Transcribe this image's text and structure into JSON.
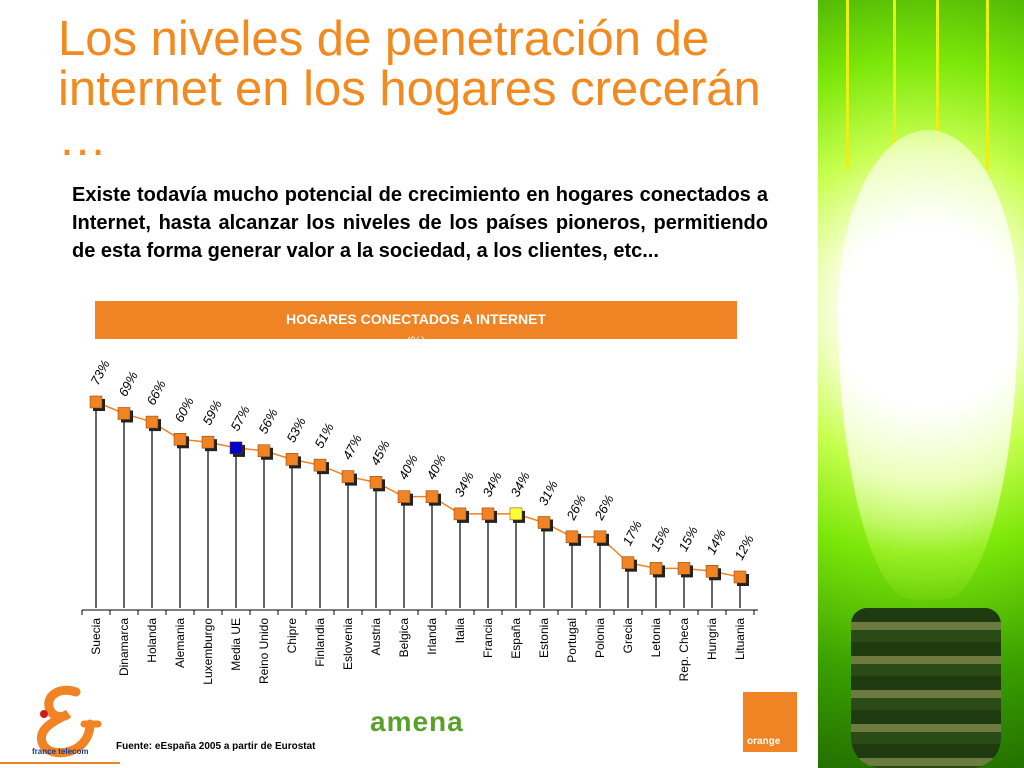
{
  "slide": {
    "title": "Los niveles de penetración de internet en los hogares crecerán …",
    "intro": "Existe todavía mucho potencial de crecimiento en hogares conectados a Internet, hasta alcanzar los niveles de los países pioneros, permitiendo de esta forma generar valor a la sociedad, a los clientes, etc...",
    "source": "Fuente: eEspaña 2005 a partir de Eurostat"
  },
  "logos": {
    "france_telecom": "france telecom",
    "amena": "amena",
    "orange": "orange"
  },
  "colors": {
    "title": "#f28a1f",
    "header_bg": "#f08323",
    "marker": "#f08323",
    "marker_ue": "#0000cc",
    "marker_espana": "#ffff33",
    "line": "#f08323"
  },
  "chart_data": {
    "type": "line",
    "title": "HOGARES CONECTADOS A INTERNET",
    "unit": "(%)",
    "categories": [
      "Suecia",
      "Dinamarca",
      "Holanda",
      "Alemania",
      "Luxemburgo",
      "Media UE",
      "Reino Unido",
      "Chipre",
      "Finlandia",
      "Eslovenia",
      "Austria",
      "Belgica",
      "Irlanda",
      "Italia",
      "Francia",
      "España",
      "Estonia",
      "Portugal",
      "Polonia",
      "Grecia",
      "Letonia",
      "Rep. Checa",
      "Hungria",
      "Lituania"
    ],
    "values": [
      73,
      69,
      66,
      60,
      59,
      57,
      56,
      53,
      51,
      47,
      45,
      40,
      40,
      34,
      34,
      34,
      31,
      26,
      26,
      17,
      15,
      15,
      14,
      12
    ],
    "data_labels": [
      "73%",
      "69%",
      "66%",
      "60%",
      "59%",
      "57%",
      "56%",
      "53%",
      "51%",
      "47%",
      "45%",
      "40%",
      "40%",
      "34%",
      "34%",
      "34%",
      "31%",
      "26%",
      "26%",
      "17%",
      "15%",
      "15%",
      "14%",
      "12%"
    ],
    "highlight": {
      "Media UE": "marker_ue",
      "España": "marker_espana"
    },
    "ylim": [
      0,
      73
    ],
    "grid": false,
    "legend": "none"
  }
}
